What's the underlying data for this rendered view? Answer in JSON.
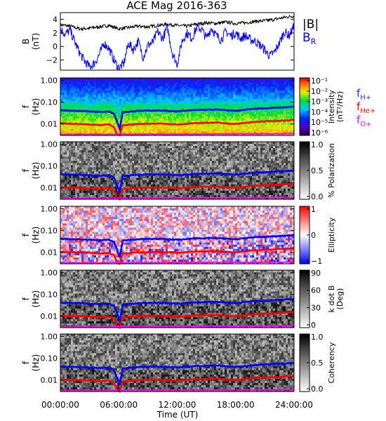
{
  "chart_data": {
    "type": "spectrogram",
    "title": "ACE Mag 2016-363",
    "xlabel": "Time (UT)",
    "x_ticks": [
      "00:00:00",
      "06:00:00",
      "12:00:00",
      "18:00:00",
      "24:00:00"
    ],
    "x_range_hours": [
      0,
      24
    ],
    "top_panel": {
      "type": "line",
      "ylabel": "B",
      "yunit": "(nT)",
      "ylim": [
        -3.5,
        5
      ],
      "y_ticks": [
        4,
        2,
        0,
        -2
      ],
      "series": [
        {
          "name": "|B|",
          "color": "#000000",
          "points": [
            [
              0,
              3.2
            ],
            [
              1,
              3.0
            ],
            [
              2,
              2.6
            ],
            [
              3,
              2.7
            ],
            [
              4,
              2.9
            ],
            [
              5,
              3.1
            ],
            [
              6,
              2.6
            ],
            [
              7,
              2.8
            ],
            [
              8,
              3.0
            ],
            [
              9,
              2.9
            ],
            [
              10,
              3.1
            ],
            [
              11,
              3.3
            ],
            [
              12,
              3.1
            ],
            [
              13,
              3.0
            ],
            [
              14,
              3.3
            ],
            [
              15,
              3.5
            ],
            [
              16,
              3.4
            ],
            [
              17,
              3.6
            ],
            [
              18,
              3.4
            ],
            [
              19,
              3.5
            ],
            [
              20,
              3.7
            ],
            [
              21,
              3.8
            ],
            [
              22,
              4.0
            ],
            [
              23,
              4.3
            ],
            [
              24,
              4.5
            ]
          ]
        },
        {
          "name": "B_R",
          "color": "#0000ff",
          "points": [
            [
              0,
              2.6
            ],
            [
              0.5,
              1.8
            ],
            [
              1,
              2.4
            ],
            [
              1.5,
              0.6
            ],
            [
              2,
              -1.0
            ],
            [
              2.5,
              -2.2
            ],
            [
              3,
              -3.0
            ],
            [
              3.5,
              -2.5
            ],
            [
              4,
              -1.2
            ],
            [
              4.5,
              0.5
            ],
            [
              5,
              -0.3
            ],
            [
              5.5,
              -2.0
            ],
            [
              6,
              -3.2
            ],
            [
              6.5,
              -2.6
            ],
            [
              7,
              0.5
            ],
            [
              7.5,
              -0.5
            ],
            [
              8,
              0.8
            ],
            [
              8.5,
              -1.6
            ],
            [
              9,
              0.2
            ],
            [
              9.5,
              0.6
            ],
            [
              10,
              2.2
            ],
            [
              10.5,
              1.2
            ],
            [
              11,
              2.8
            ],
            [
              11.5,
              -1.0
            ],
            [
              12,
              -2.6
            ],
            [
              12.5,
              0.8
            ],
            [
              13,
              2.0
            ],
            [
              13.5,
              1.2
            ],
            [
              14,
              2.8
            ],
            [
              14.5,
              2.6
            ],
            [
              15,
              1.2
            ],
            [
              15.5,
              2.8
            ],
            [
              16,
              1.6
            ],
            [
              16.5,
              1.0
            ],
            [
              17,
              2.2
            ],
            [
              17.5,
              1.6
            ],
            [
              18,
              2.0
            ],
            [
              18.5,
              1.2
            ],
            [
              19,
              1.6
            ],
            [
              19.5,
              1.0
            ],
            [
              20,
              0.8
            ],
            [
              20.5,
              0.2
            ],
            [
              21,
              -0.5
            ],
            [
              21.5,
              -1.4
            ],
            [
              22,
              -0.8
            ],
            [
              22.5,
              0.5
            ],
            [
              23,
              2.2
            ],
            [
              23.5,
              1.6
            ],
            [
              24,
              3.0
            ]
          ]
        }
      ]
    },
    "legend": {
      "b_mag": "|B|",
      "b_r": "B",
      "b_r_sub": "R"
    },
    "spectrogram_panels": [
      {
        "name": "intensity",
        "ylabel": "f",
        "yunit": "(Hz)",
        "colorbar_label": "Intensity",
        "colorbar_unit": "(nT²/Hz)",
        "colormap": "rainbow",
        "cb_ticks": [
          "10⁻¹",
          "10⁻²",
          "10⁻³",
          "10⁻⁴",
          "10⁻⁵",
          "10⁻⁶"
        ]
      },
      {
        "name": "polarization",
        "ylabel": "f",
        "yunit": "(Hz)",
        "colorbar_label": "% Polarization",
        "colormap": "gray",
        "cb_ticks": [
          "1.0",
          "0.5",
          "0.0"
        ]
      },
      {
        "name": "ellipticity",
        "ylabel": "f",
        "yunit": "(Hz)",
        "colorbar_label": "Ellipticity",
        "colormap": "bwr",
        "cb_ticks": [
          "1",
          "0",
          "−1"
        ]
      },
      {
        "name": "k-dot-b",
        "ylabel": "f",
        "yunit": "(Hz)",
        "colorbar_label": "k dot B",
        "colorbar_unit": "(Deg)",
        "colormap": "gray",
        "cb_ticks": [
          "90",
          "60",
          "30",
          "0"
        ]
      },
      {
        "name": "coherency",
        "ylabel": "f",
        "yunit": "(Hz)",
        "colorbar_label": "Coherency",
        "colormap": "gray",
        "cb_ticks": [
          "1.0",
          "0.5",
          "0.0"
        ]
      }
    ],
    "freq_ticks": [
      "1.00",
      "0.10",
      "0.01"
    ],
    "freq_range_hz": [
      0.003,
      1.3
    ],
    "cyclotron_lines": [
      {
        "name": "f_H+",
        "label": "f",
        "sub": "H+",
        "color": "#0000ff",
        "points": [
          [
            0,
            0.042
          ],
          [
            2,
            0.04
          ],
          [
            4,
            0.036
          ],
          [
            5,
            0.038
          ],
          [
            5.5,
            0.03
          ],
          [
            5.8,
            0.014
          ],
          [
            6.1,
            0.006
          ],
          [
            6.4,
            0.035
          ],
          [
            8,
            0.04
          ],
          [
            10,
            0.042
          ],
          [
            12,
            0.038
          ],
          [
            14,
            0.044
          ],
          [
            16,
            0.046
          ],
          [
            18,
            0.04
          ],
          [
            19,
            0.045
          ],
          [
            20,
            0.05
          ],
          [
            22,
            0.055
          ],
          [
            24,
            0.062
          ]
        ]
      },
      {
        "name": "f_He+",
        "label": "f",
        "sub": "He+",
        "color": "#ff0000",
        "points": [
          [
            0,
            0.0105
          ],
          [
            2,
            0.01
          ],
          [
            4,
            0.009
          ],
          [
            5,
            0.0095
          ],
          [
            5.5,
            0.0075
          ],
          [
            5.8,
            0.0035
          ],
          [
            6.1,
            0.003
          ],
          [
            6.4,
            0.0088
          ],
          [
            8,
            0.01
          ],
          [
            10,
            0.0105
          ],
          [
            12,
            0.0095
          ],
          [
            14,
            0.011
          ],
          [
            16,
            0.0115
          ],
          [
            18,
            0.01
          ],
          [
            19,
            0.0112
          ],
          [
            20,
            0.0125
          ],
          [
            22,
            0.0138
          ],
          [
            24,
            0.0155
          ]
        ]
      },
      {
        "name": "f_O+",
        "label": "f",
        "sub": "O+",
        "color": "#ff00ff",
        "points": [
          [
            0,
            0.0033
          ],
          [
            24,
            0.0036
          ]
        ]
      }
    ]
  }
}
